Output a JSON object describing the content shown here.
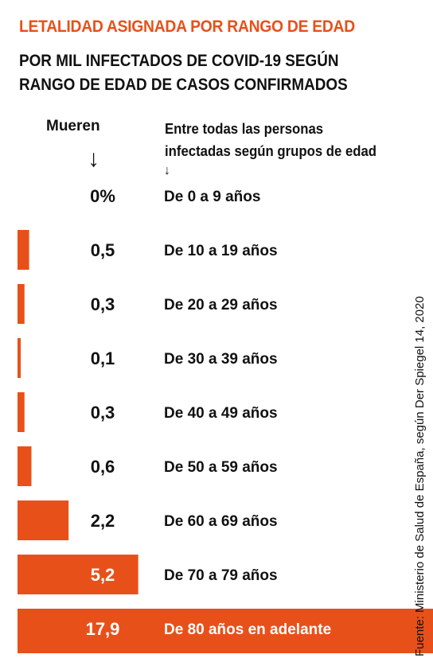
{
  "title": "LETALIDAD ASIGNADA POR RANGO DE EDAD",
  "subtitle_lines": [
    "POR MIL INFECTADOS DE COVID-19 SEGÚN",
    "RANGO DE EDAD DE CASOS CONFIRMADOS"
  ],
  "column_headers": {
    "left": "Mueren",
    "right_lines": [
      "Entre todas las personas",
      "infectadas según grupos de edad"
    ]
  },
  "source": "Fuente: Ministerio de Salud de España, según Der Spiegel 14, 2020",
  "colors": {
    "accent": "#e8501a",
    "text": "#111111"
  },
  "chart_data": {
    "type": "bar",
    "orientation": "horizontal",
    "categories": [
      "De 0 a 9 años",
      "De 10 a 19 años",
      "De 20 a 29 años",
      "De 30 a 39 años",
      "De 40 a 49 años",
      "De 50 a 59 años",
      "De 60 a 69 años",
      "De 70 a 79 años",
      "De 80 años en adelante"
    ],
    "values": [
      0,
      0.5,
      0.3,
      0.1,
      0.3,
      0.6,
      2.2,
      5.2,
      17.9
    ],
    "value_labels": [
      "0%",
      "0,5",
      "0,3",
      "0,1",
      "0,3",
      "0,6",
      "2,2",
      "5,2",
      "17,9"
    ],
    "xlim": [
      0,
      17.9
    ],
    "grid": false,
    "legend": "none",
    "bar_color": "#e8501a"
  }
}
